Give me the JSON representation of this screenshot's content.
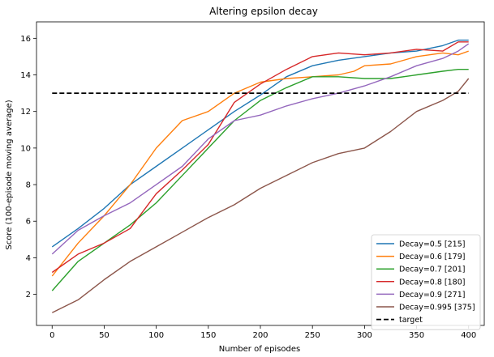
{
  "chart_data": {
    "type": "line",
    "title": "Altering epsilon decay",
    "xlabel": "Number of episodes",
    "ylabel": "Score (100-episode moving average)",
    "xlim": [
      -15,
      415
    ],
    "ylim": [
      0.3,
      16.9
    ],
    "xticks": [
      0,
      50,
      100,
      150,
      200,
      250,
      300,
      350,
      400
    ],
    "yticks": [
      2,
      4,
      6,
      8,
      10,
      12,
      14,
      16
    ],
    "grid": false,
    "legend_position": "lower-right",
    "series": [
      {
        "name": "Decay=0.5 [215]",
        "color": "#1f77b4",
        "x": [
          0,
          25,
          50,
          75,
          100,
          125,
          150,
          175,
          200,
          225,
          250,
          275,
          300,
          325,
          350,
          375,
          390,
          400
        ],
        "y": [
          4.6,
          5.6,
          6.7,
          8.0,
          9.0,
          10.0,
          11.0,
          12.0,
          12.9,
          13.9,
          14.5,
          14.8,
          15.0,
          15.2,
          15.3,
          15.6,
          15.9,
          15.9
        ]
      },
      {
        "name": "Decay=0.6 [179]",
        "color": "#ff7f0e",
        "x": [
          0,
          25,
          50,
          75,
          100,
          125,
          150,
          175,
          200,
          225,
          250,
          275,
          290,
          300,
          325,
          350,
          375,
          390,
          400
        ],
        "y": [
          3.0,
          4.8,
          6.3,
          8.0,
          10.0,
          11.5,
          12.0,
          13.0,
          13.6,
          13.8,
          13.9,
          14.0,
          14.2,
          14.5,
          14.6,
          15.0,
          15.2,
          15.1,
          15.3
        ]
      },
      {
        "name": "Decay=0.7 [201]",
        "color": "#2ca02c",
        "x": [
          0,
          25,
          50,
          75,
          100,
          125,
          150,
          175,
          200,
          225,
          250,
          275,
          300,
          325,
          350,
          375,
          390,
          400
        ],
        "y": [
          2.2,
          3.8,
          4.8,
          5.8,
          7.0,
          8.5,
          10.0,
          11.5,
          12.6,
          13.3,
          13.9,
          13.9,
          13.8,
          13.8,
          14.0,
          14.2,
          14.3,
          14.3
        ]
      },
      {
        "name": "Decay=0.8 [180]",
        "color": "#d62728",
        "x": [
          0,
          25,
          50,
          75,
          100,
          125,
          150,
          175,
          200,
          225,
          250,
          275,
          300,
          325,
          350,
          375,
          390,
          400
        ],
        "y": [
          3.2,
          4.2,
          4.8,
          5.6,
          7.5,
          8.8,
          10.2,
          12.5,
          13.5,
          14.3,
          15.0,
          15.2,
          15.1,
          15.2,
          15.4,
          15.3,
          15.8,
          15.8
        ]
      },
      {
        "name": "Decay=0.9 [271]",
        "color": "#9467bd",
        "x": [
          0,
          25,
          50,
          75,
          100,
          125,
          150,
          175,
          200,
          225,
          250,
          275,
          300,
          325,
          350,
          375,
          390,
          400
        ],
        "y": [
          4.2,
          5.5,
          6.3,
          7.0,
          8.0,
          9.0,
          10.5,
          11.5,
          11.8,
          12.3,
          12.7,
          13.0,
          13.4,
          13.9,
          14.5,
          14.9,
          15.3,
          15.7
        ]
      },
      {
        "name": "Decay=0.995 [375]",
        "color": "#8c564b",
        "x": [
          0,
          25,
          50,
          75,
          100,
          125,
          150,
          175,
          200,
          225,
          250,
          275,
          300,
          325,
          350,
          375,
          390,
          400
        ],
        "y": [
          1.0,
          1.7,
          2.8,
          3.8,
          4.6,
          5.4,
          6.2,
          6.9,
          7.8,
          8.5,
          9.2,
          9.7,
          10.0,
          10.9,
          12.0,
          12.6,
          13.1,
          13.8
        ]
      },
      {
        "name": "target",
        "color": "#000000",
        "dashed": true,
        "x": [
          0,
          400
        ],
        "y": [
          13,
          13
        ]
      }
    ]
  }
}
